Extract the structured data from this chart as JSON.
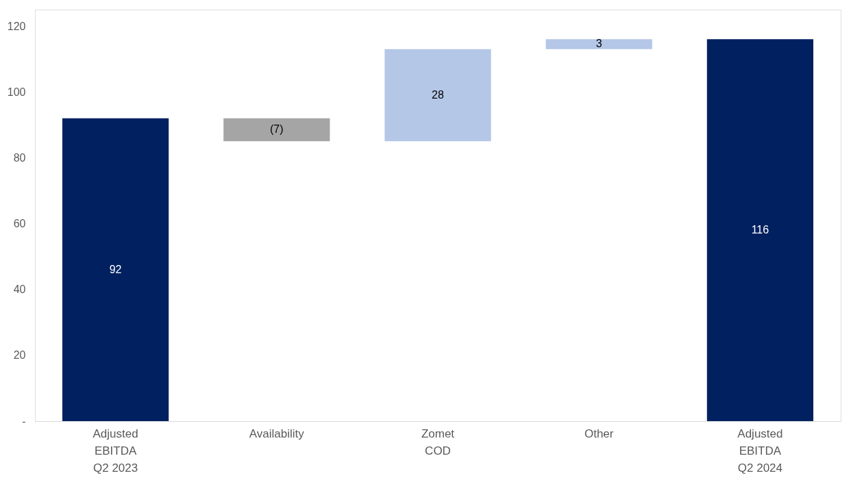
{
  "chart_data": {
    "type": "bar",
    "categories": [
      "Adjusted\nEBITDA\nQ2 2023",
      "Availability",
      "Zomet\nCOD",
      "Other",
      "Adjusted\nEBITDA\nQ2 2024"
    ],
    "values": [
      92,
      -7,
      28,
      3,
      116
    ],
    "base": [
      0,
      92,
      85,
      113,
      0
    ],
    "colors": [
      "#002060",
      "#a5a5a5",
      "#b4c7e7",
      "#b4c7e7",
      "#002060"
    ],
    "value_labels": [
      "92",
      "(7)",
      "28",
      "3",
      "116"
    ],
    "ylim": [
      0,
      125
    ],
    "yticks": [
      {
        "value": 0,
        "label": "-"
      },
      20,
      40,
      60,
      80,
      100,
      120
    ],
    "grid": false
  }
}
